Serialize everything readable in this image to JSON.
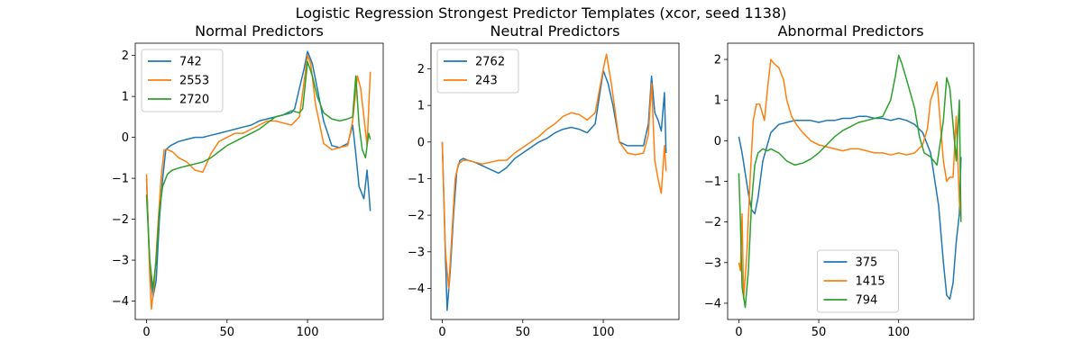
{
  "figure": {
    "suptitle": "Logistic Regression Strongest Predictor Templates (xcor, seed 1138)"
  },
  "chart_data": [
    {
      "type": "line",
      "title": "Normal Predictors",
      "xlabel": "",
      "ylabel": "",
      "xlim": [
        -7,
        147
      ],
      "ylim": [
        -4.45,
        2.3
      ],
      "xticks": [
        0,
        50,
        100
      ],
      "yticks": [
        -4,
        -3,
        -2,
        -1,
        0,
        1,
        2
      ],
      "legend": "upper left",
      "series": [
        {
          "name": "742",
          "color": "#1f77b4",
          "x": [
            0,
            2,
            4,
            6,
            8,
            10,
            12,
            15,
            20,
            25,
            30,
            35,
            40,
            45,
            50,
            55,
            60,
            65,
            70,
            75,
            80,
            85,
            90,
            92,
            95,
            98,
            100,
            103,
            106,
            110,
            115,
            120,
            125,
            128,
            130,
            132,
            135,
            137,
            139
          ],
          "y": [
            -1.0,
            -3.2,
            -3.9,
            -3.5,
            -2.0,
            -1.0,
            -0.3,
            -0.2,
            -0.1,
            -0.05,
            0.0,
            0.0,
            0.05,
            0.1,
            0.15,
            0.2,
            0.25,
            0.3,
            0.4,
            0.45,
            0.5,
            0.55,
            0.6,
            0.7,
            1.2,
            1.7,
            2.1,
            1.8,
            1.2,
            0.4,
            -0.2,
            -0.25,
            -0.15,
            0.3,
            -0.4,
            -1.2,
            -1.5,
            -0.8,
            -1.8
          ]
        },
        {
          "name": "2553",
          "color": "#ff7f0e",
          "x": [
            0,
            2,
            3,
            5,
            7,
            9,
            11,
            13,
            16,
            20,
            25,
            30,
            35,
            40,
            45,
            50,
            55,
            60,
            65,
            70,
            75,
            80,
            85,
            90,
            95,
            98,
            100,
            102,
            105,
            110,
            115,
            120,
            125,
            128,
            131,
            133,
            135,
            137,
            139
          ],
          "y": [
            -0.9,
            -3.4,
            -4.2,
            -3.5,
            -2.2,
            -1.0,
            -0.3,
            -0.3,
            -0.35,
            -0.5,
            -0.6,
            -0.8,
            -0.85,
            -0.4,
            -0.1,
            0.0,
            0.1,
            0.1,
            0.2,
            0.3,
            0.4,
            0.4,
            0.35,
            0.3,
            0.5,
            1.4,
            2.0,
            1.8,
            0.8,
            -0.15,
            -0.3,
            -0.25,
            -0.2,
            0.4,
            1.5,
            1.2,
            0.5,
            -0.2,
            1.6
          ]
        },
        {
          "name": "2720",
          "color": "#2ca02c",
          "x": [
            0,
            2,
            4,
            6,
            8,
            10,
            13,
            16,
            20,
            25,
            30,
            35,
            40,
            45,
            50,
            55,
            60,
            65,
            70,
            75,
            80,
            85,
            90,
            95,
            97,
            100,
            103,
            106,
            110,
            115,
            120,
            125,
            128,
            130,
            132,
            134,
            136,
            138,
            139
          ],
          "y": [
            -1.4,
            -3.0,
            -3.7,
            -3.0,
            -1.8,
            -1.2,
            -0.9,
            -0.8,
            -0.75,
            -0.7,
            -0.65,
            -0.6,
            -0.5,
            -0.35,
            -0.2,
            -0.1,
            0.0,
            0.1,
            0.2,
            0.35,
            0.5,
            0.55,
            0.65,
            0.6,
            0.7,
            1.85,
            1.5,
            1.0,
            0.6,
            0.45,
            0.4,
            0.45,
            0.5,
            1.5,
            0.3,
            -0.3,
            -0.5,
            0.1,
            -0.05
          ]
        }
      ]
    },
    {
      "type": "line",
      "title": "Neutral Predictors",
      "xlabel": "",
      "ylabel": "",
      "xlim": [
        -7,
        147
      ],
      "ylim": [
        -4.85,
        2.7
      ],
      "xticks": [
        0,
        50,
        100
      ],
      "yticks": [
        -4,
        -3,
        -2,
        -1,
        0,
        1,
        2
      ],
      "legend": "upper left",
      "series": [
        {
          "name": "2762",
          "color": "#1f77b4",
          "x": [
            0,
            2,
            3,
            5,
            7,
            9,
            11,
            13,
            16,
            20,
            25,
            30,
            35,
            40,
            45,
            50,
            55,
            60,
            65,
            70,
            75,
            80,
            85,
            90,
            95,
            100,
            103,
            106,
            110,
            115,
            120,
            125,
            128,
            130,
            132,
            134,
            136,
            138,
            139
          ],
          "y": [
            0.0,
            -3.2,
            -4.6,
            -3.5,
            -2.0,
            -0.8,
            -0.5,
            -0.45,
            -0.5,
            -0.55,
            -0.65,
            -0.75,
            -0.85,
            -0.7,
            -0.45,
            -0.3,
            -0.15,
            0.0,
            0.1,
            0.25,
            0.35,
            0.4,
            0.35,
            0.25,
            0.5,
            1.95,
            1.6,
            1.0,
            0.0,
            -0.1,
            -0.1,
            -0.1,
            0.5,
            1.8,
            0.8,
            0.6,
            0.3,
            1.35,
            -0.3
          ]
        },
        {
          "name": "243",
          "color": "#ff7f0e",
          "x": [
            0,
            2,
            4,
            6,
            8,
            10,
            13,
            16,
            20,
            25,
            30,
            35,
            40,
            45,
            50,
            55,
            60,
            65,
            70,
            75,
            80,
            85,
            90,
            95,
            100,
            102,
            105,
            110,
            115,
            120,
            125,
            128,
            130,
            132,
            134,
            136,
            138,
            139
          ],
          "y": [
            0.0,
            -3.0,
            -4.0,
            -2.5,
            -1.0,
            -0.6,
            -0.5,
            -0.5,
            -0.55,
            -0.6,
            -0.55,
            -0.5,
            -0.5,
            -0.3,
            -0.15,
            0.0,
            0.15,
            0.35,
            0.5,
            0.7,
            0.8,
            0.75,
            0.6,
            0.8,
            2.0,
            2.4,
            1.6,
            0.0,
            -0.3,
            -0.35,
            -0.3,
            0.2,
            1.6,
            -0.5,
            -1.0,
            -1.4,
            -0.1,
            -0.8
          ]
        }
      ]
    },
    {
      "type": "line",
      "title": "Abnormal Predictors",
      "xlabel": "",
      "ylabel": "",
      "xlim": [
        -7,
        147
      ],
      "ylim": [
        -4.4,
        2.4
      ],
      "xticks": [
        0,
        50,
        100
      ],
      "yticks": [
        -4,
        -3,
        -2,
        -1,
        0,
        1,
        2
      ],
      "legend": "lower center",
      "series": [
        {
          "name": "375",
          "color": "#1f77b4",
          "x": [
            0,
            2,
            4,
            6,
            8,
            10,
            12,
            15,
            20,
            25,
            30,
            35,
            40,
            45,
            50,
            55,
            60,
            65,
            70,
            75,
            80,
            85,
            90,
            95,
            100,
            105,
            110,
            115,
            120,
            125,
            128,
            130,
            132,
            134,
            136,
            138,
            139
          ],
          "y": [
            0.1,
            -0.3,
            -0.8,
            -1.3,
            -1.7,
            -1.8,
            -1.4,
            -0.5,
            0.2,
            0.4,
            0.45,
            0.5,
            0.5,
            0.5,
            0.45,
            0.5,
            0.5,
            0.55,
            0.55,
            0.6,
            0.6,
            0.55,
            0.55,
            0.5,
            0.55,
            0.5,
            0.4,
            0.2,
            -0.3,
            -1.6,
            -3.0,
            -3.8,
            -3.9,
            -3.5,
            -2.5,
            -1.8,
            -0.4
          ]
        },
        {
          "name": "1415",
          "color": "#ff7f0e",
          "x": [
            0,
            1,
            2,
            3,
            5,
            7,
            9,
            11,
            13,
            16,
            18,
            20,
            22,
            25,
            28,
            30,
            33,
            36,
            40,
            45,
            50,
            55,
            60,
            65,
            70,
            75,
            80,
            85,
            90,
            95,
            100,
            105,
            110,
            115,
            118,
            120,
            124,
            128,
            130,
            132,
            134,
            136,
            138,
            139
          ],
          "y": [
            -3.0,
            -3.2,
            -1.8,
            -3.9,
            -2.8,
            -1.0,
            0.5,
            0.9,
            0.9,
            0.5,
            1.3,
            2.0,
            1.9,
            1.8,
            1.5,
            1.0,
            0.6,
            0.4,
            0.2,
            0.0,
            -0.1,
            -0.15,
            -0.2,
            -0.25,
            -0.2,
            -0.2,
            -0.25,
            -0.3,
            -0.3,
            -0.35,
            -0.3,
            -0.35,
            -0.3,
            -0.1,
            0.3,
            1.0,
            1.45,
            -0.5,
            -1.0,
            -0.9,
            -0.9,
            0.6,
            -1.5,
            -1.9
          ]
        },
        {
          "name": "794",
          "color": "#2ca02c",
          "x": [
            0,
            1,
            2,
            4,
            6,
            8,
            10,
            12,
            15,
            18,
            20,
            25,
            30,
            35,
            40,
            45,
            50,
            55,
            60,
            65,
            70,
            75,
            80,
            85,
            90,
            95,
            98,
            100,
            102,
            105,
            110,
            113,
            116,
            120,
            124,
            128,
            130,
            132,
            134,
            136,
            138,
            139
          ],
          "y": [
            -0.8,
            -2.0,
            -3.6,
            -4.1,
            -3.2,
            -1.5,
            -0.6,
            -0.3,
            -0.2,
            -0.25,
            -0.2,
            -0.3,
            -0.5,
            -0.6,
            -0.55,
            -0.45,
            -0.3,
            -0.1,
            0.1,
            0.25,
            0.35,
            0.45,
            0.5,
            0.55,
            0.6,
            1.0,
            1.6,
            2.1,
            1.9,
            1.5,
            0.8,
            0.1,
            -0.3,
            -0.4,
            -0.6,
            0.5,
            1.55,
            1.3,
            0.4,
            -0.5,
            1.0,
            -2.0
          ]
        }
      ]
    }
  ]
}
